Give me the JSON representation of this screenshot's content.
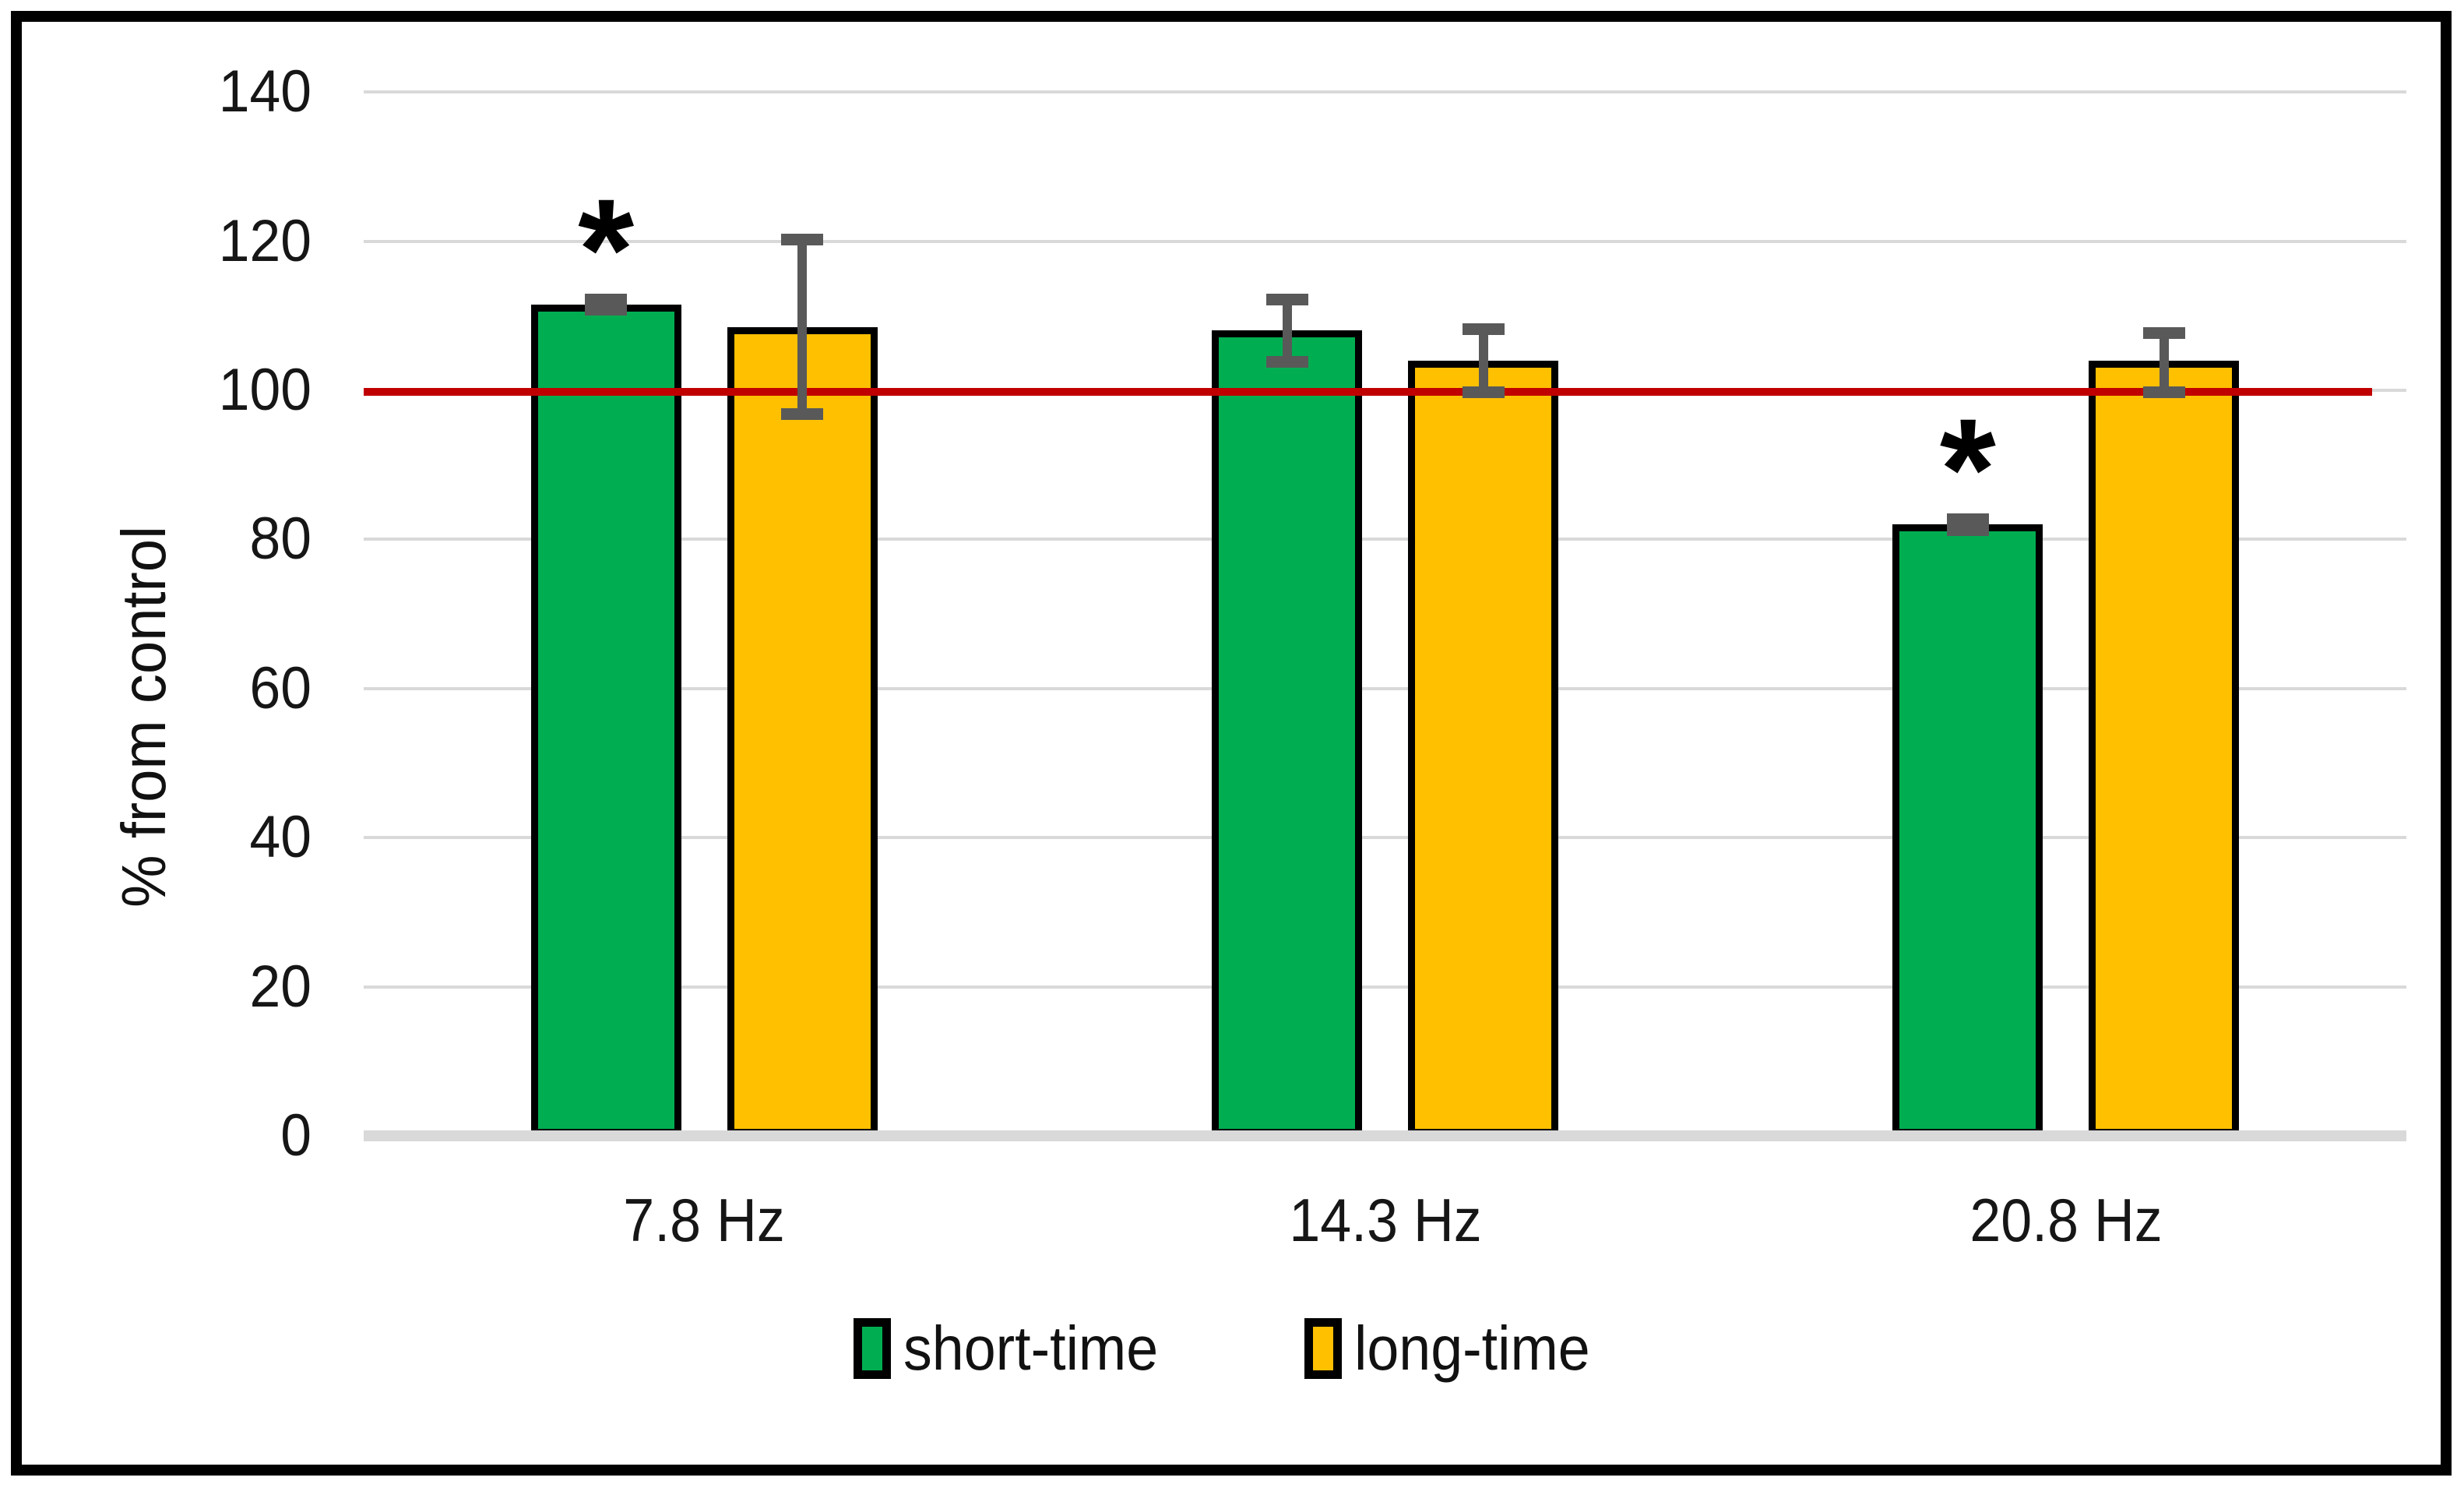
{
  "figure": {
    "background": "#ffffff",
    "frame_color": "#000000"
  },
  "chart_data": {
    "type": "bar",
    "title": "",
    "xlabel": "",
    "ylabel": "% from control",
    "categories": [
      "7.8 Hz",
      "14.3 Hz",
      "20.8 Hz"
    ],
    "series": [
      {
        "name": "short-time",
        "color": "#00AE51",
        "values": [
          111.5,
          108,
          82
        ],
        "err_plus": [
          1.5,
          5,
          1.5
        ],
        "err_minus": [
          1.5,
          5,
          1.5
        ],
        "significant": [
          true,
          false,
          true
        ]
      },
      {
        "name": "long-time",
        "color": "#FFC000",
        "values": [
          108.5,
          104,
          104
        ],
        "err_plus": [
          12.5,
          5,
          4.5
        ],
        "err_minus": [
          12.5,
          5,
          5
        ],
        "significant": [
          false,
          false,
          false
        ]
      }
    ],
    "yticks": [
      0,
      20,
      40,
      60,
      80,
      100,
      120,
      140
    ],
    "ylim": [
      0,
      147
    ],
    "grid": true,
    "gridline_color": "#D9D9D9",
    "axis_line_color": "#D9D9D9",
    "error_bar_color": "#595959",
    "bar_border_color": "#000000",
    "reference_line": {
      "value": 100,
      "color": "#C00000"
    },
    "significance_marker": "*",
    "legend_position": "bottom"
  }
}
